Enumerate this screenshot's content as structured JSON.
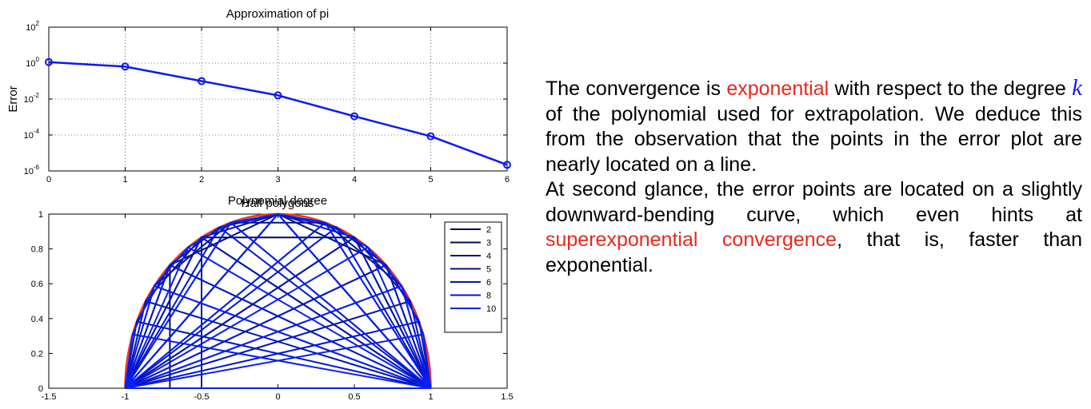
{
  "chart_data": [
    {
      "type": "line",
      "title": "Approximation of pi",
      "xlabel": "Polynomial degree",
      "ylabel": "Error",
      "yscale": "log",
      "xlim": [
        0,
        6
      ],
      "ylim": [
        1e-06,
        100
      ],
      "x_ticks": [
        "0",
        "1",
        "2",
        "3",
        "4",
        "5",
        "6"
      ],
      "y_tick_exponents": [
        "2",
        "0",
        "-2",
        "-4",
        "-6"
      ],
      "grid": true,
      "series": [
        {
          "x": [
            0,
            1,
            2,
            3,
            4,
            5,
            6
          ],
          "values": [
            1.14,
            0.64,
            0.1,
            0.016,
            0.0011,
            8.5e-05,
            2.2e-06
          ],
          "color": "#0d18f2",
          "marker": "circle"
        }
      ]
    },
    {
      "type": "line",
      "title": "Half polygons",
      "xlim": [
        -1.5,
        1.5
      ],
      "ylim": [
        0,
        1
      ],
      "x_ticks": [
        "-1.5",
        "-1",
        "-0.5",
        "0",
        "0.5",
        "1",
        "1.5"
      ],
      "y_ticks": [
        "0",
        "0.2",
        "0.4",
        "0.6",
        "0.8",
        "1"
      ],
      "legend_placement": "top-right",
      "circle_color": "#e83a27",
      "series": [
        {
          "name": "2",
          "n": 2,
          "color": "#000a3c"
        },
        {
          "name": "3",
          "n": 3,
          "color": "#000b55"
        },
        {
          "name": "4",
          "n": 4,
          "color": "#000e6e"
        },
        {
          "name": "5",
          "n": 5,
          "color": "#001191"
        },
        {
          "name": "6",
          "n": 6,
          "color": "#0014ad"
        },
        {
          "name": "8",
          "n": 8,
          "color": "#0016c8"
        },
        {
          "name": "10",
          "n": 10,
          "color": "#0a1ef0"
        }
      ]
    }
  ],
  "text": {
    "p1": "The convergence is",
    "p1_red": "exponential",
    "p2": "with respect to the degree",
    "p2_var": "k",
    "p3": "of the polynomial used for extrapolation. We deduce this from the observation that the points in the error plot are nearly located on a line.",
    "p4": "At second glance, the error points are located on a slightly downward-bending curve, which even hints at",
    "p4_red": "superexponential convergence",
    "p5": ", that is, faster than exponential."
  }
}
